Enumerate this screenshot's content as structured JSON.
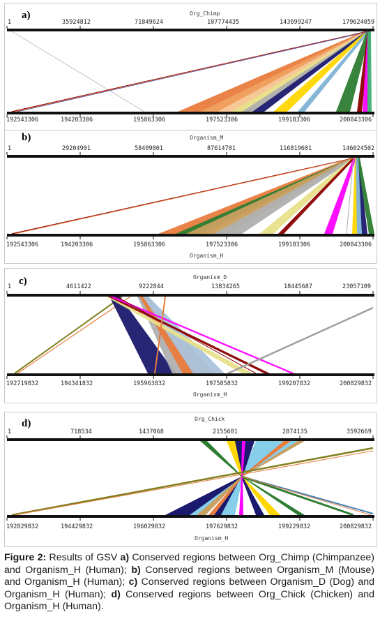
{
  "panels": [
    {
      "id": "a",
      "label": "a)",
      "top_track_name": "Org_Chimp",
      "top_ticks": [
        "1",
        "35924812",
        "71849624",
        "107774435",
        "143699247",
        "179624059"
      ],
      "bottom_ticks": [
        "192543306",
        "194203306",
        "195863306",
        "197523306",
        "199183306",
        "200843306"
      ],
      "bottom_track_name": "",
      "colors": [
        "#e87c3e",
        "#f0a060",
        "#f5c89a",
        "#b0b0b0",
        "#e8e08a",
        "#1a1a6e",
        "#ffd700",
        "#7fb3d5",
        "#2e7d32",
        "#8b0000",
        "#ff00ff",
        "#3cb371"
      ]
    },
    {
      "id": "b",
      "label": "b)",
      "top_track_name": "Organism_M",
      "top_ticks": [
        "1",
        "29204901",
        "58409801",
        "87614701",
        "116819601",
        "146024502"
      ],
      "bottom_ticks": [
        "192543306",
        "194203306",
        "195863306",
        "197523306",
        "199183306",
        "200843306"
      ],
      "bottom_track_name": "Organism_H",
      "colors": [
        "#e87c3e",
        "#2e7d32",
        "#c8a060",
        "#b0b0b0",
        "#e8e08a",
        "#8b0000",
        "#ff00ff",
        "#ffd700",
        "#1a1a6e",
        "#7fb3d5"
      ]
    },
    {
      "id": "c",
      "label": "c)",
      "top_track_name": "Organism_D",
      "top_ticks": [
        "1",
        "4611422",
        "9222844",
        "13834265",
        "18445687",
        "23057109"
      ],
      "bottom_ticks": [
        "192719832",
        "194341832",
        "195963832",
        "197585832",
        "199207832",
        "200829832"
      ],
      "bottom_track_name": "Organism_H",
      "colors": [
        "#1a1a6e",
        "#b0b0b0",
        "#e87c3e",
        "#aac4dd",
        "#e8e08a",
        "#8b0000",
        "#ff00ff",
        "#808020",
        "#a0a0a0"
      ]
    },
    {
      "id": "d",
      "label": "d)",
      "top_track_name": "Org_Chick",
      "top_ticks": [
        "1",
        "718534",
        "1437068",
        "2155601",
        "2874135",
        "3592669"
      ],
      "bottom_ticks": [
        "192829832",
        "194429832",
        "196029832",
        "197629832",
        "199229832",
        "200829832"
      ],
      "bottom_track_name": "Organism_H",
      "colors": [
        "#1a1a6e",
        "#87ceeb",
        "#ffd700",
        "#2e7d32",
        "#808020",
        "#e87c3e",
        "#ff00ff",
        "#b0b0b0"
      ]
    }
  ],
  "caption": {
    "fig_label": "Figure 2:",
    "intro": " Results of GSV ",
    "a_label": "a)",
    "a_text": " Conserved regions between Org_Chimp (Chimpanzee) and Organism_H (Human); ",
    "b_label": "b)",
    "b_text": " Conserved regions between Organism_M (Mouse) and Organism_H (Human); ",
    "c_label": "c)",
    "c_text": " Conserved regions between Organism_D (Dog) and Organism_H (Human); ",
    "d_label": "d)",
    "d_text": " Conserved regions between Org_Chick (Chicken) and Organism_H (Human)."
  }
}
